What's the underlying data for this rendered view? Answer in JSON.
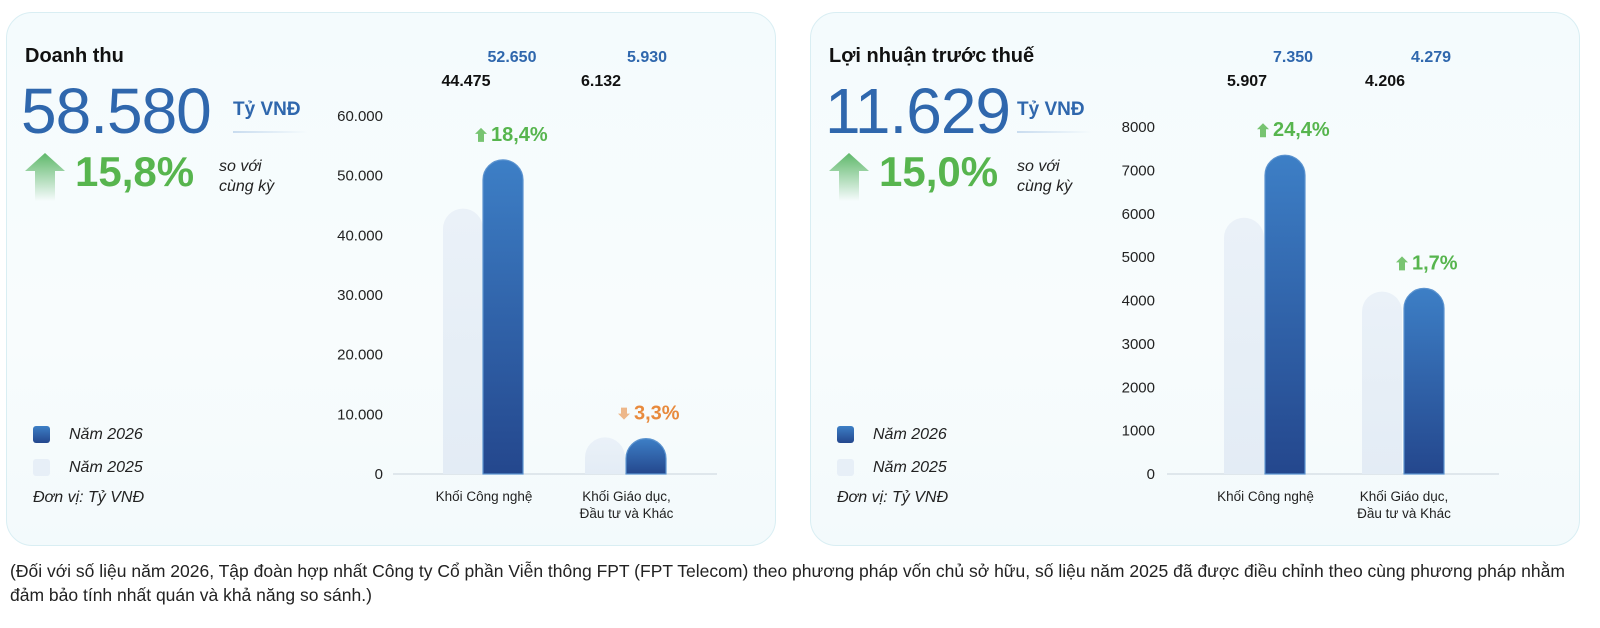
{
  "cards": [
    {
      "title": "Doanh thu",
      "total_value": "58.580",
      "unit": "Tỷ VNĐ",
      "growth": "15,8%",
      "growth_direction": "up",
      "compare_note": "so với cùng kỳ",
      "legend": [
        "Năm 2026",
        "Năm 2025"
      ],
      "unit_note": "Đơn vị: Tỷ VNĐ"
    },
    {
      "title": "Lợi nhuận trước thuế",
      "total_value": "11.629",
      "unit": "Tỷ VNĐ",
      "growth": "15,0%",
      "growth_direction": "up",
      "compare_note": "so với cùng kỳ",
      "legend": [
        "Năm 2026",
        "Năm 2025"
      ],
      "unit_note": "Đơn vị: Tỷ VNĐ"
    }
  ],
  "footnote": "(Đối với số liệu năm 2026, Tập đoàn hợp nhất Công ty Cổ phần Viễn thông FPT (FPT Telecom) theo phương pháp vốn chủ sở hữu, số liệu năm 2025 đã được điều chỉnh theo cùng phương pháp nhằm đảm bảo tính nhất quán và khả năng so sánh.)",
  "colors": {
    "accent_blue": "#2f67ad",
    "growth_green": "#57b54e",
    "decline_orange": "#e88a3d",
    "bar_2026_top": "#3d7fc6",
    "bar_2026_bottom": "#24478d",
    "bar_2025": "#e7eff7"
  },
  "chart_data": [
    {
      "type": "bar",
      "categories": [
        "Khối Công nghệ",
        "Khối Giáo dục, Đầu tư và Khác"
      ],
      "category_lines": [
        [
          "Khối Công nghệ"
        ],
        [
          "Khối Giáo dục,",
          "Đầu tư và Khác"
        ]
      ],
      "series": [
        {
          "name": "Năm 2025",
          "values": [
            44475,
            6132
          ],
          "labels": [
            "44.475",
            "6.132"
          ]
        },
        {
          "name": "Năm 2026",
          "values": [
            52650,
            5930
          ],
          "labels": [
            "52.650",
            "5.930"
          ]
        }
      ],
      "changes": [
        {
          "label": "18,4%",
          "direction": "up"
        },
        {
          "label": "3,3%",
          "direction": "down"
        }
      ],
      "yticks": [
        0,
        10000,
        20000,
        30000,
        40000,
        50000,
        60000
      ],
      "ytick_labels": [
        "0",
        "10.000",
        "20.000",
        "30.000",
        "40.000",
        "50.000",
        "60.000"
      ],
      "ylim": [
        0,
        60000
      ],
      "legend": "left"
    },
    {
      "type": "bar",
      "categories": [
        "Khối Công nghệ",
        "Khối Giáo dục, Đầu tư và Khác"
      ],
      "category_lines": [
        [
          "Khối Công nghệ"
        ],
        [
          "Khối Giáo dục,",
          "Đầu tư và Khác"
        ]
      ],
      "series": [
        {
          "name": "Năm 2025",
          "values": [
            5907,
            4206
          ],
          "labels": [
            "5.907",
            "4.206"
          ]
        },
        {
          "name": "Năm 2026",
          "values": [
            7350,
            4279
          ],
          "labels": [
            "7.350",
            "4.279"
          ]
        }
      ],
      "changes": [
        {
          "label": "24,4%",
          "direction": "up"
        },
        {
          "label": "1,7%",
          "direction": "up"
        }
      ],
      "yticks": [
        0,
        1000,
        2000,
        3000,
        4000,
        5000,
        6000,
        7000,
        8000
      ],
      "ytick_labels": [
        "0",
        "1000",
        "2000",
        "3000",
        "4000",
        "5000",
        "6000",
        "7000",
        "8000"
      ],
      "ylim": [
        0,
        8000
      ],
      "legend": "left"
    }
  ]
}
